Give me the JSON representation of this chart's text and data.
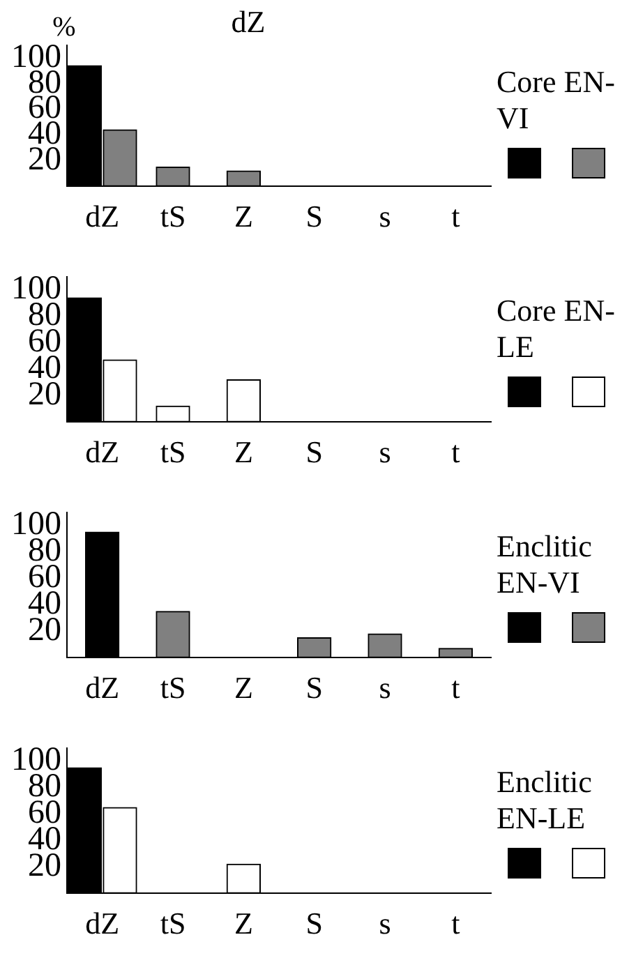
{
  "chart_data": [
    {
      "type": "bar",
      "title": "dZ",
      "ylabel": "%",
      "legend_title": "Core EN-VI",
      "categories": [
        "dZ",
        "tS",
        "Z",
        "S",
        "s",
        "t"
      ],
      "ylim": [
        0,
        110
      ],
      "yticks": [
        20,
        40,
        60,
        80,
        100
      ],
      "grid": false,
      "series": [
        {
          "color": "#000000",
          "values": [
            94,
            null,
            null,
            null,
            null,
            null
          ]
        },
        {
          "color": "#808080",
          "values": [
            44,
            15,
            12,
            null,
            null,
            null
          ]
        }
      ]
    },
    {
      "type": "bar",
      "legend_title": "Core EN-LE",
      "categories": [
        "dZ",
        "tS",
        "Z",
        "S",
        "s",
        "t"
      ],
      "ylim": [
        0,
        110
      ],
      "yticks": [
        20,
        40,
        60,
        80,
        100
      ],
      "grid": false,
      "series": [
        {
          "color": "#000000",
          "values": [
            94,
            null,
            null,
            null,
            null,
            null
          ]
        },
        {
          "color": "#ffffff",
          "values": [
            47,
            12,
            32,
            null,
            null,
            null
          ]
        }
      ]
    },
    {
      "type": "bar",
      "legend_title": "Enclitic EN-VI",
      "categories": [
        "dZ",
        "tS",
        "Z",
        "S",
        "s",
        "t"
      ],
      "ylim": [
        0,
        110
      ],
      "yticks": [
        20,
        40,
        60,
        80,
        100
      ],
      "grid": false,
      "series": [
        {
          "color": "#000000",
          "values": [
            95,
            null,
            null,
            null,
            null,
            null
          ]
        },
        {
          "color": "#808080",
          "values": [
            null,
            35,
            null,
            15,
            18,
            7
          ]
        }
      ]
    },
    {
      "type": "bar",
      "legend_title": "Enclitic EN-LE",
      "categories": [
        "dZ",
        "tS",
        "Z",
        "S",
        "s",
        "t"
      ],
      "ylim": [
        0,
        110
      ],
      "yticks": [
        20,
        40,
        60,
        80,
        100
      ],
      "grid": false,
      "series": [
        {
          "color": "#000000",
          "values": [
            95,
            null,
            null,
            null,
            null,
            null
          ]
        },
        {
          "color": "#ffffff",
          "values": [
            65,
            null,
            22,
            null,
            null,
            null
          ]
        }
      ]
    }
  ]
}
